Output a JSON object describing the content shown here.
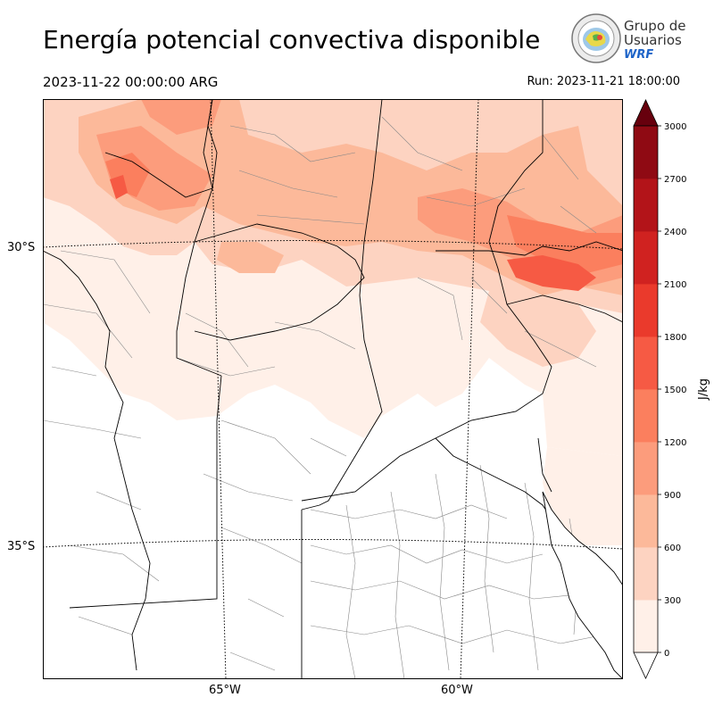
{
  "header": {
    "title": "Energía potencial convectiva disponible",
    "valid_time": "2023-11-22 00:00:00 ARG",
    "run_time": "Run: 2023-11-21 18:00:00"
  },
  "logo": {
    "line1": "Grupo de",
    "line2": "Usuarios",
    "line3": "WRF",
    "accent": "#1e64c8"
  },
  "map": {
    "lat_labels": [
      "30°S",
      "35°S"
    ],
    "lon_labels": [
      "65°W",
      "60°W"
    ],
    "colors": {
      "border_province": "#000000",
      "border_department": "#888888",
      "graticule": "#000000"
    }
  },
  "colorbar": {
    "unit": "J/kg",
    "tick_labels": [
      "0",
      "300",
      "600",
      "900",
      "1200",
      "1500",
      "1800",
      "2100",
      "2400",
      "2700",
      "3000"
    ],
    "levels": [
      0,
      300,
      600,
      900,
      1200,
      1500,
      1800,
      2100,
      2400,
      2700,
      3000
    ],
    "colors": [
      "#fff0e8",
      "#fdd3c1",
      "#fcb99a",
      "#fc9c7c",
      "#fb7f5e",
      "#f65a44",
      "#ea3a2c",
      "#d02220",
      "#b31419",
      "#8f0a13"
    ],
    "extend_color": "#67000d",
    "extend": "max"
  }
}
